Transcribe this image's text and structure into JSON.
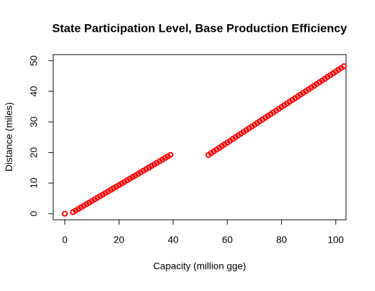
{
  "chart_data": {
    "type": "scatter",
    "title": "State Participation Level, Base Production Efficiency",
    "xlabel": "Capacity (million gge)",
    "ylabel": "Distance (miles)",
    "xlim": [
      -4.3,
      103.8
    ],
    "ylim": [
      -2,
      52
    ],
    "xticks": [
      0,
      20,
      40,
      60,
      80,
      100
    ],
    "yticks": [
      0,
      10,
      20,
      30,
      40,
      50
    ],
    "series": [
      {
        "color": "#ff0000",
        "x": [
          0,
          3,
          4,
          5,
          6,
          7,
          8,
          9,
          10,
          11,
          12,
          13,
          14,
          15,
          16,
          17,
          18,
          19,
          20,
          21,
          22,
          23,
          24,
          25,
          26,
          27,
          28,
          29,
          30,
          31,
          32,
          33,
          34,
          35,
          36,
          37,
          38,
          39,
          53,
          54,
          55,
          56,
          57,
          58,
          59,
          60,
          61,
          62,
          63,
          64,
          65,
          66,
          67,
          68,
          69,
          70,
          71,
          72,
          73,
          74,
          75,
          76,
          77,
          78,
          79,
          80,
          81,
          82,
          83,
          84,
          85,
          86,
          87,
          88,
          89,
          90,
          91,
          92,
          93,
          94,
          95,
          96,
          97,
          98,
          99,
          100,
          101,
          102,
          103
        ],
        "values": [
          0,
          0.52,
          1.04,
          1.56,
          2.08,
          2.6,
          3.12,
          3.64,
          4.16,
          4.68,
          5.2,
          5.72,
          6.24,
          6.76,
          7.28,
          7.8,
          8.32,
          8.84,
          9.36,
          9.88,
          10.4,
          10.92,
          11.44,
          11.96,
          12.48,
          13,
          13.52,
          14.04,
          14.56,
          15.08,
          15.6,
          16.12,
          16.64,
          17.16,
          17.68,
          18.2,
          18.72,
          19.24,
          19.2,
          19.78,
          20.36,
          20.94,
          21.52,
          22.1,
          22.68,
          23.26,
          23.84,
          24.42,
          25,
          25.58,
          26.16,
          26.74,
          27.32,
          27.9,
          28.48,
          29.06,
          29.64,
          30.22,
          30.8,
          31.38,
          31.96,
          32.54,
          33.12,
          33.7,
          34.28,
          34.86,
          35.44,
          36.02,
          36.6,
          37.18,
          37.76,
          38.34,
          38.92,
          39.5,
          40.08,
          40.66,
          41.24,
          41.82,
          42.4,
          42.98,
          43.56,
          44.14,
          44.72,
          45.3,
          45.88,
          46.46,
          47.04,
          47.62,
          48.2
        ]
      }
    ]
  }
}
